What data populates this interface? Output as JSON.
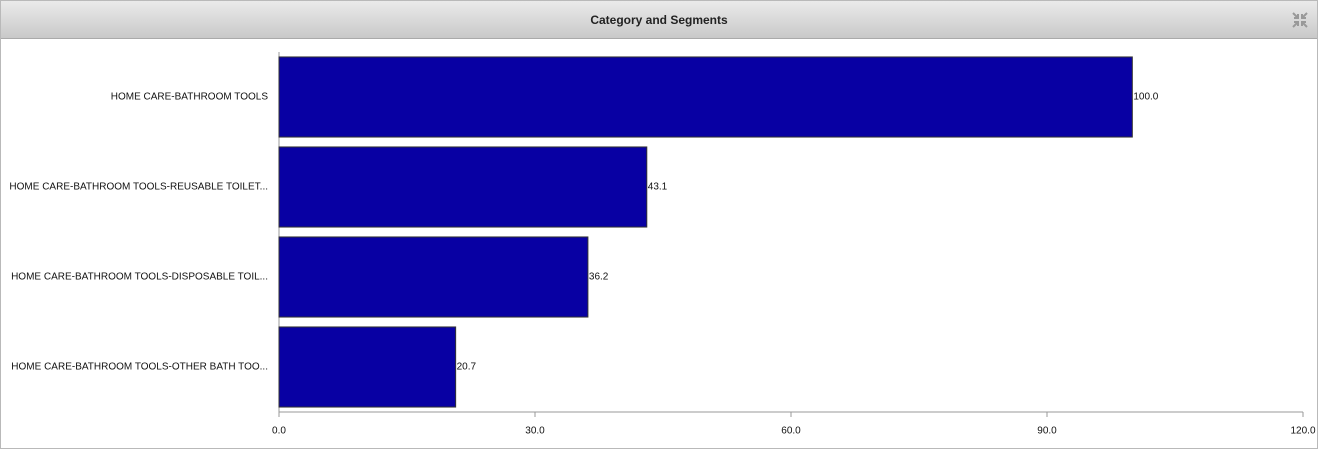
{
  "header": {
    "title": "Category and Segments"
  },
  "chart_data": {
    "type": "bar",
    "orientation": "horizontal",
    "categories": [
      "HOME CARE-BATHROOM TOOLS",
      "HOME CARE-BATHROOM TOOLS-REUSABLE TOILET...",
      "HOME CARE-BATHROOM TOOLS-DISPOSABLE TOIL...",
      "HOME CARE-BATHROOM TOOLS-OTHER BATH TOO..."
    ],
    "values": [
      100,
      43.1,
      36.2,
      20.7
    ],
    "value_labels": [
      "100.0",
      "43.1",
      "36.2",
      "20.7"
    ],
    "color": "#0800a3",
    "xlim": [
      0,
      120
    ],
    "xticks": [
      {
        "value": 0,
        "label": "0.0"
      },
      {
        "value": 30,
        "label": "30.0"
      },
      {
        "value": 60,
        "label": "60.0"
      },
      {
        "value": 90,
        "label": "90.0"
      },
      {
        "value": 120,
        "label": "120.0"
      }
    ]
  }
}
